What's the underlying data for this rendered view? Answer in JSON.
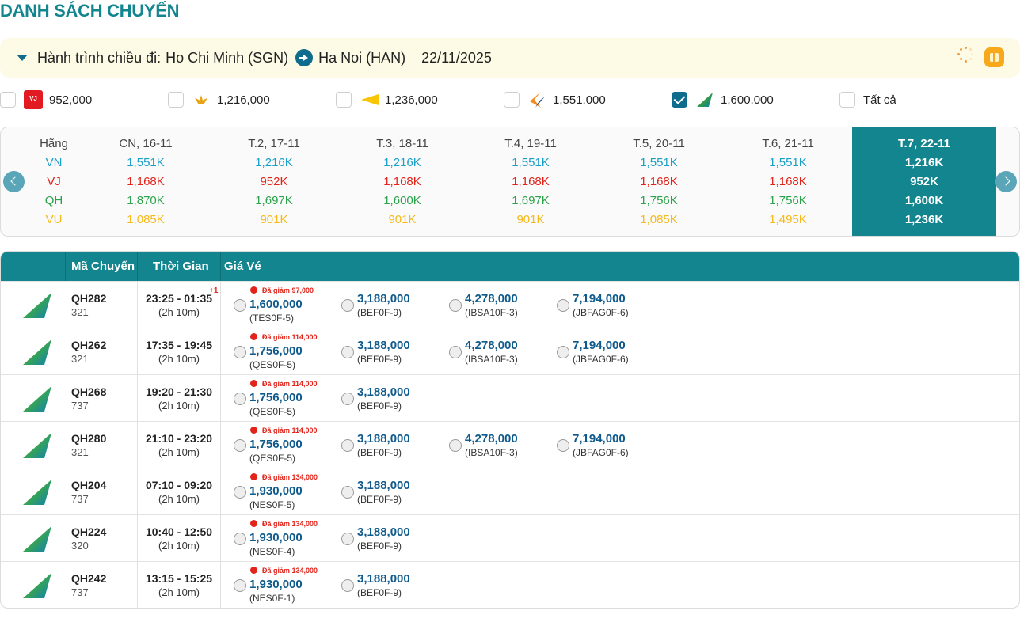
{
  "page_title": "DANH SÁCH CHUYẾN",
  "route": {
    "label": "Hành trình chiều đi:",
    "from": "Ho Chi Minh (SGN)",
    "to": "Ha Noi (HAN)",
    "date": "22/11/2025",
    "icons": [
      "caret-down-icon",
      "arrow-right-icon",
      "loading-spinner-icon",
      "gift-icon"
    ]
  },
  "airline_filters": [
    {
      "airline": "VJ",
      "logo": "vietjet-logo",
      "price": "952,000",
      "checked": false
    },
    {
      "airline": "VN",
      "logo": "vietnam-airlines-logo",
      "price": "1,216,000",
      "checked": false
    },
    {
      "airline": "VU",
      "logo": "vietravel-logo",
      "price": "1,236,000",
      "checked": false
    },
    {
      "airline": "VX",
      "logo": "airline-logo",
      "price": "1,551,000",
      "checked": false
    },
    {
      "airline": "QH",
      "logo": "bamboo-airways-logo",
      "price": "1,600,000",
      "checked": true
    },
    {
      "airline": "ALL",
      "logo": "",
      "price": "Tất cả",
      "checked": false
    }
  ],
  "calendar": {
    "header_label": "Hãng",
    "airlines": [
      "VN",
      "VJ",
      "QH",
      "VU"
    ],
    "airline_colors": {
      "VN": "#1a9fc7",
      "VJ": "#e2231a",
      "QH": "#2aa34a",
      "VU": "#f5b91a"
    },
    "days": [
      {
        "label": "CN, 16-11",
        "prices": [
          "1,551K",
          "1,168K",
          "1,870K",
          "1,085K"
        ],
        "selected": false
      },
      {
        "label": "T.2, 17-11",
        "prices": [
          "1,216K",
          "952K",
          "1,697K",
          "901K"
        ],
        "selected": false
      },
      {
        "label": "T.3, 18-11",
        "prices": [
          "1,216K",
          "1,168K",
          "1,600K",
          "901K"
        ],
        "selected": false
      },
      {
        "label": "T.4, 19-11",
        "prices": [
          "1,551K",
          "1,168K",
          "1,697K",
          "901K"
        ],
        "selected": false
      },
      {
        "label": "T.5, 20-11",
        "prices": [
          "1,551K",
          "1,168K",
          "1,756K",
          "1,085K"
        ],
        "selected": false
      },
      {
        "label": "T.6, 21-11",
        "prices": [
          "1,551K",
          "1,168K",
          "1,756K",
          "1,495K"
        ],
        "selected": false
      },
      {
        "label": "T.7, 22-11",
        "prices": [
          "1,216K",
          "952K",
          "1,600K",
          "1,236K"
        ],
        "selected": true
      }
    ]
  },
  "table": {
    "headers": {
      "code": "Mã Chuyến",
      "time": "Thời Gian",
      "fare": "Giá Vé"
    },
    "rows": [
      {
        "code": "QH282",
        "aircraft": "321",
        "time": "23:25 - 01:35",
        "plus": "+1",
        "duration": "(2h 10m)",
        "fares": [
          {
            "discount": "Đã giảm 97,000",
            "price": "1,600,000",
            "class": "(TES0F-5)"
          },
          {
            "price": "3,188,000",
            "class": "(BEF0F-9)"
          },
          {
            "price": "4,278,000",
            "class": "(IBSA10F-3)"
          },
          {
            "price": "7,194,000",
            "class": "(JBFAG0F-6)"
          }
        ]
      },
      {
        "code": "QH262",
        "aircraft": "321",
        "time": "17:35 - 19:45",
        "plus": "",
        "duration": "(2h 10m)",
        "fares": [
          {
            "discount": "Đã giảm 114,000",
            "price": "1,756,000",
            "class": "(QES0F-5)"
          },
          {
            "price": "3,188,000",
            "class": "(BEF0F-9)"
          },
          {
            "price": "4,278,000",
            "class": "(IBSA10F-3)"
          },
          {
            "price": "7,194,000",
            "class": "(JBFAG0F-6)"
          }
        ]
      },
      {
        "code": "QH268",
        "aircraft": "737",
        "time": "19:20 - 21:30",
        "plus": "",
        "duration": "(2h 10m)",
        "fares": [
          {
            "discount": "Đã giảm 114,000",
            "price": "1,756,000",
            "class": "(QES0F-5)"
          },
          {
            "price": "3,188,000",
            "class": "(BEF0F-9)"
          }
        ]
      },
      {
        "code": "QH280",
        "aircraft": "321",
        "time": "21:10 - 23:20",
        "plus": "",
        "duration": "(2h 10m)",
        "fares": [
          {
            "discount": "Đã giảm 114,000",
            "price": "1,756,000",
            "class": "(QES0F-5)"
          },
          {
            "price": "3,188,000",
            "class": "(BEF0F-9)"
          },
          {
            "price": "4,278,000",
            "class": "(IBSA10F-3)"
          },
          {
            "price": "7,194,000",
            "class": "(JBFAG0F-6)"
          }
        ]
      },
      {
        "code": "QH204",
        "aircraft": "737",
        "time": "07:10 - 09:20",
        "plus": "",
        "duration": "(2h 10m)",
        "fares": [
          {
            "discount": "Đã giảm 134,000",
            "price": "1,930,000",
            "class": "(NES0F-5)"
          },
          {
            "price": "3,188,000",
            "class": "(BEF0F-9)"
          }
        ]
      },
      {
        "code": "QH224",
        "aircraft": "320",
        "time": "10:40 - 12:50",
        "plus": "",
        "duration": "(2h 10m)",
        "fares": [
          {
            "discount": "Đã giảm 134,000",
            "price": "1,930,000",
            "class": "(NES0F-4)"
          },
          {
            "price": "3,188,000",
            "class": "(BEF0F-9)"
          }
        ]
      },
      {
        "code": "QH242",
        "aircraft": "737",
        "time": "13:15 - 15:25",
        "plus": "",
        "duration": "(2h 10m)",
        "fares": [
          {
            "discount": "Đã giảm 134,000",
            "price": "1,930,000",
            "class": "(NES0F-1)"
          },
          {
            "price": "3,188,000",
            "class": "(BEF0F-9)"
          }
        ]
      }
    ]
  }
}
